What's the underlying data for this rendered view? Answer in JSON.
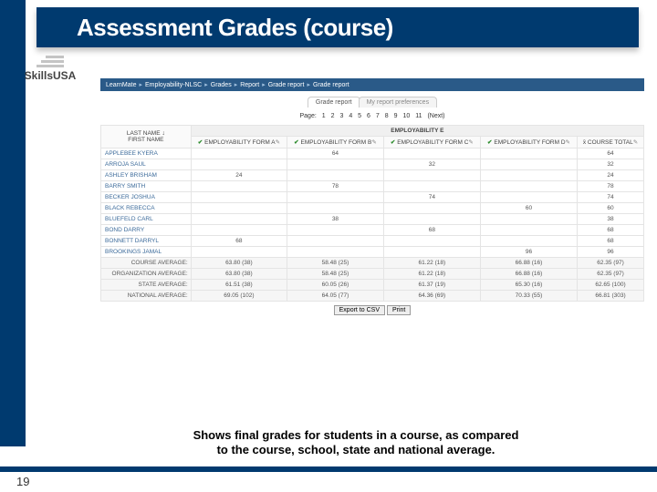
{
  "title": "Assessment Grades (course)",
  "logo_text": "SkillsUSA",
  "breadcrumb": [
    "LearnMate",
    "Employability-NLSC",
    "Grades",
    "Report",
    "Grade report",
    "Grade report"
  ],
  "tabs": [
    {
      "label": "Grade report",
      "active": true
    },
    {
      "label": "My report preferences",
      "active": false
    }
  ],
  "pager_prefix": "Page:",
  "pager_pages": [
    "1",
    "2",
    "3",
    "4",
    "5",
    "6",
    "7",
    "8",
    "9",
    "10",
    "11"
  ],
  "pager_next": "(Next)",
  "section_header": "EMPLOYABILITY E",
  "name_header_line1": "LAST NAME",
  "name_header_line2": "FIRST NAME",
  "col_headers": [
    "EMPLOYABILITY FORM A",
    "EMPLOYABILITY FORM B",
    "EMPLOYABILITY FORM C",
    "EMPLOYABILITY FORM D",
    "COURSE TOTAL"
  ],
  "rows": [
    {
      "name": "APPLEBEE KYERA",
      "v": [
        "",
        "64",
        "",
        "",
        "64"
      ]
    },
    {
      "name": "ARROJA SAUL",
      "v": [
        "",
        "",
        "32",
        "",
        "32"
      ]
    },
    {
      "name": "ASHLEY BRISHAM",
      "v": [
        "24",
        "",
        "",
        "",
        "24"
      ]
    },
    {
      "name": "BARRY SMITH",
      "v": [
        "",
        "78",
        "",
        "",
        "78"
      ]
    },
    {
      "name": "BECKER JOSHUA",
      "v": [
        "",
        "",
        "74",
        "",
        "74"
      ]
    },
    {
      "name": "BLACK REBECCA",
      "v": [
        "",
        "",
        "",
        "60",
        "60"
      ]
    },
    {
      "name": "BLUEFELD CARL",
      "v": [
        "",
        "38",
        "",
        "",
        "38"
      ]
    },
    {
      "name": "BOND DARRY",
      "v": [
        "",
        "",
        "68",
        "",
        "68"
      ]
    },
    {
      "name": "BONNETT DARRYL",
      "v": [
        "68",
        "",
        "",
        "",
        "68"
      ]
    },
    {
      "name": "BROOKINGS JAMAL",
      "v": [
        "",
        "",
        "",
        "96",
        "96"
      ]
    }
  ],
  "averages": [
    {
      "label": "COURSE AVERAGE:",
      "v": [
        "63.80 (38)",
        "58.48 (25)",
        "61.22 (18)",
        "66.88 (16)",
        "62.35 (97)"
      ]
    },
    {
      "label": "ORGANIZATION AVERAGE:",
      "v": [
        "63.80 (38)",
        "58.48 (25)",
        "61.22 (18)",
        "66.88 (16)",
        "62.35 (97)"
      ]
    },
    {
      "label": "STATE AVERAGE:",
      "v": [
        "61.51 (38)",
        "60.05 (26)",
        "61.37 (19)",
        "65.30 (16)",
        "62.65 (100)"
      ]
    },
    {
      "label": "NATIONAL AVERAGE:",
      "v": [
        "69.05 (102)",
        "64.05 (77)",
        "64.36 (69)",
        "70.33 (55)",
        "66.81 (303)"
      ]
    }
  ],
  "export_csv": "Export to CSV",
  "print_btn": "Print",
  "caption_line1": "Shows final grades for students in a course, as compared",
  "caption_line2": "to the course, school, state and national average.",
  "page_number": "19",
  "colors": {
    "brand_blue": "#003a6f",
    "nav_blue": "#2a5a88",
    "check_green": "#2a8a2a"
  }
}
